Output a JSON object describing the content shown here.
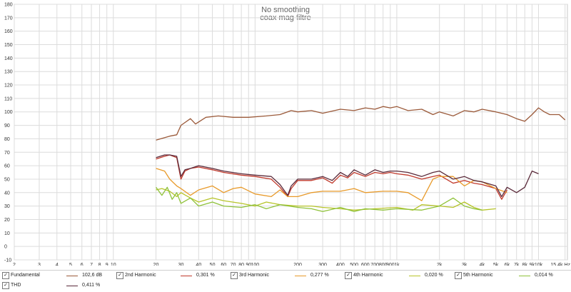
{
  "chart_data": {
    "type": "line",
    "title": "No smoothing",
    "subtitle": "coax mag filtre",
    "x_scale": "log",
    "xlim": [
      2,
      16000
    ],
    "ylim": [
      -10,
      180
    ],
    "y_ticks": [
      -10,
      0,
      10,
      20,
      30,
      40,
      50,
      60,
      70,
      80,
      90,
      100,
      110,
      120,
      130,
      140,
      150,
      160,
      170,
      180
    ],
    "x_ticks": [
      {
        "v": 2,
        "label": "2"
      },
      {
        "v": 3,
        "label": "3"
      },
      {
        "v": 4,
        "label": "4"
      },
      {
        "v": 5,
        "label": "5"
      },
      {
        "v": 6,
        "label": "6"
      },
      {
        "v": 7,
        "label": "7"
      },
      {
        "v": 8,
        "label": "8"
      },
      {
        "v": 9,
        "label": "9"
      },
      {
        "v": 10,
        "label": "10"
      },
      {
        "v": 20,
        "label": "20"
      },
      {
        "v": 30,
        "label": "30"
      },
      {
        "v": 40,
        "label": "40"
      },
      {
        "v": 50,
        "label": "50"
      },
      {
        "v": 60,
        "label": "60"
      },
      {
        "v": 70,
        "label": "70"
      },
      {
        "v": 80,
        "label": "80"
      },
      {
        "v": 90,
        "label": "90"
      },
      {
        "v": 100,
        "label": "100"
      },
      {
        "v": 200,
        "label": "200"
      },
      {
        "v": 300,
        "label": "300"
      },
      {
        "v": 400,
        "label": "400"
      },
      {
        "v": 500,
        "label": "500"
      },
      {
        "v": 600,
        "label": "600"
      },
      {
        "v": 700,
        "label": "700"
      },
      {
        "v": 800,
        "label": "800"
      },
      {
        "v": 900,
        "label": "900"
      },
      {
        "v": 1000,
        "label": "1k"
      },
      {
        "v": 2000,
        "label": "2k"
      },
      {
        "v": 3000,
        "label": "3k"
      },
      {
        "v": 4000,
        "label": "4k"
      },
      {
        "v": 5000,
        "label": "5k"
      },
      {
        "v": 6000,
        "label": "6k"
      },
      {
        "v": 7000,
        "label": "7k"
      },
      {
        "v": 8000,
        "label": "8k"
      },
      {
        "v": 9000,
        "label": "9k"
      },
      {
        "v": 10000,
        "label": "10k"
      },
      {
        "v": 15400,
        "label": "15.4k Hz"
      }
    ],
    "grid": true,
    "series": [
      {
        "name": "Fundamental",
        "value": "102,6 dB",
        "color": "#9b5a3a",
        "x": [
          20,
          25,
          28,
          30,
          35,
          38,
          45,
          55,
          70,
          90,
          120,
          150,
          180,
          200,
          250,
          300,
          400,
          500,
          600,
          700,
          800,
          900,
          1000,
          1200,
          1500,
          1800,
          2000,
          2500,
          3000,
          3500,
          4000,
          5000,
          6000,
          7000,
          8000,
          9000,
          10000,
          11000,
          12000,
          14000,
          15400
        ],
        "y": [
          79,
          82,
          83,
          90,
          95,
          91,
          96,
          97,
          96,
          96,
          97,
          98,
          101,
          100,
          101,
          99,
          102,
          101,
          103,
          102,
          104,
          103,
          104,
          101,
          102,
          98,
          100,
          97,
          101,
          100,
          102,
          100,
          98,
          95,
          93,
          98,
          103,
          100,
          98,
          98,
          94
        ]
      },
      {
        "name": "2nd Harmonic",
        "value": "0,301 %",
        "color": "#c0392b",
        "x": [
          20,
          23,
          25,
          28,
          30,
          32,
          35,
          40,
          50,
          60,
          80,
          100,
          130,
          150,
          170,
          180,
          200,
          250,
          300,
          350,
          400,
          450,
          500,
          600,
          700,
          800,
          900,
          1000,
          1200,
          1500,
          1800,
          2000,
          2500,
          3000,
          3500,
          4000,
          5000,
          5500,
          6000
        ],
        "y": [
          65,
          67,
          68,
          66,
          50,
          56,
          58,
          59,
          57,
          55,
          53,
          52,
          50,
          44,
          37,
          43,
          49,
          49,
          51,
          47,
          53,
          51,
          55,
          52,
          55,
          54,
          55,
          54,
          53,
          50,
          52,
          53,
          47,
          49,
          47,
          46,
          43,
          35,
          42
        ]
      },
      {
        "name": "3rd Harmonic",
        "value": "0,277 %",
        "color": "#e89a2a",
        "x": [
          20,
          23,
          25,
          28,
          30,
          35,
          40,
          50,
          60,
          70,
          80,
          100,
          130,
          150,
          170,
          200,
          250,
          300,
          400,
          500,
          600,
          800,
          1000,
          1200,
          1500,
          1800,
          2000,
          2500,
          3000,
          3500,
          4000,
          5000,
          6000
        ],
        "y": [
          58,
          56,
          50,
          45,
          43,
          38,
          42,
          45,
          40,
          43,
          44,
          39,
          37,
          42,
          37,
          37,
          40,
          41,
          41,
          43,
          40,
          41,
          41,
          40,
          34,
          50,
          52,
          52,
          45,
          49,
          48,
          43,
          40
        ]
      },
      {
        "name": "4th Harmonic",
        "value": "0,020 %",
        "color": "#b7c42a",
        "x": [
          20,
          22,
          25,
          28,
          30,
          35,
          40,
          50,
          60,
          80,
          100,
          120,
          150,
          200,
          250,
          300,
          400,
          500,
          700,
          1000,
          1300,
          1500,
          2000,
          2500,
          3000,
          3500,
          4000,
          5000
        ],
        "y": [
          42,
          43,
          41,
          37,
          40,
          36,
          33,
          36,
          34,
          32,
          30,
          33,
          31,
          30,
          30,
          29,
          28,
          27,
          28,
          29,
          27,
          31,
          30,
          29,
          33,
          29,
          27,
          28
        ]
      },
      {
        "name": "5th Harmonic",
        "value": "0,014 %",
        "color": "#8fc23a",
        "x": [
          20,
          22,
          24,
          26,
          28,
          30,
          35,
          40,
          50,
          60,
          80,
          100,
          120,
          150,
          200,
          250,
          300,
          400,
          500,
          600,
          800,
          1000,
          1500,
          2000,
          2500,
          3000,
          3500,
          4000
        ],
        "y": [
          44,
          38,
          44,
          35,
          40,
          32,
          36,
          30,
          33,
          30,
          29,
          31,
          28,
          31,
          29,
          28,
          26,
          29,
          26,
          28,
          27,
          28,
          27,
          30,
          36,
          30,
          28,
          27
        ]
      },
      {
        "name": "THD",
        "value": "0,411 %",
        "color": "#5a2a3a",
        "x": [
          20,
          23,
          25,
          28,
          30,
          32,
          35,
          40,
          50,
          60,
          80,
          100,
          130,
          150,
          170,
          180,
          200,
          250,
          300,
          350,
          400,
          450,
          500,
          600,
          700,
          800,
          900,
          1000,
          1200,
          1500,
          1800,
          2000,
          2500,
          3000,
          3500,
          4000,
          5000,
          5500,
          6000,
          7000,
          8000,
          9000,
          10000
        ],
        "y": [
          66,
          68,
          68,
          67,
          52,
          57,
          58,
          60,
          58,
          56,
          54,
          53,
          52,
          46,
          38,
          45,
          50,
          50,
          52,
          49,
          55,
          52,
          57,
          53,
          57,
          55,
          56,
          56,
          55,
          52,
          55,
          56,
          50,
          52,
          49,
          48,
          45,
          37,
          44,
          40,
          44,
          56,
          54
        ]
      }
    ]
  },
  "legend": [
    {
      "name": "Fundamental",
      "value": "102,6 dB",
      "color": "#9b5a3a",
      "checked": true
    },
    {
      "name": "2nd Harmonic",
      "value": "0,301 %",
      "color": "#c0392b",
      "checked": true
    },
    {
      "name": "3rd Harmonic",
      "value": "0,277 %",
      "color": "#e89a2a",
      "checked": true
    },
    {
      "name": "4th Harmonic",
      "value": "0,020 %",
      "color": "#b7c42a",
      "checked": true
    },
    {
      "name": "5th Harmonic",
      "value": "0,014 %",
      "color": "#8fc23a",
      "checked": true
    },
    {
      "name": "THD",
      "value": "0,411 %",
      "color": "#5a2a3a",
      "checked": true
    }
  ]
}
